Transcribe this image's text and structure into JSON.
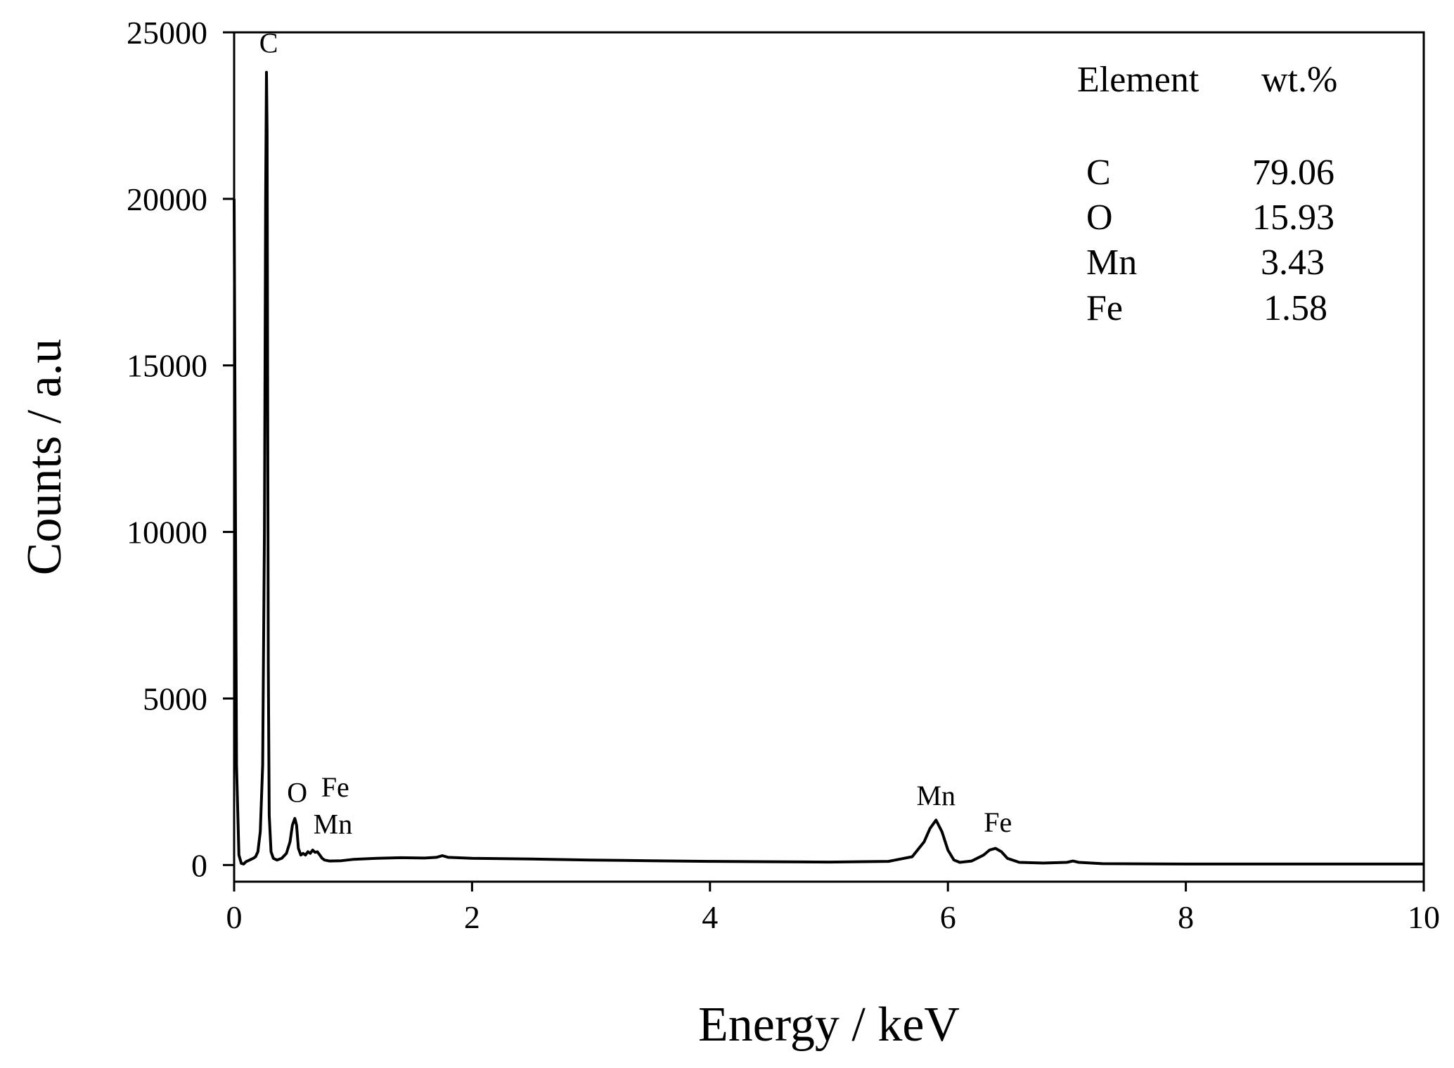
{
  "chart_data": {
    "type": "line",
    "title": "",
    "xlabel": "Energy / keV",
    "ylabel": "Counts / a.u",
    "xlim": [
      0,
      10
    ],
    "ylim": [
      -500,
      25000
    ],
    "x_ticks": [
      "0",
      "2",
      "4",
      "6",
      "8",
      "10"
    ],
    "y_ticks": [
      "0",
      "5000",
      "10000",
      "15000",
      "20000",
      "25000"
    ],
    "x_tick_values": [
      0,
      2,
      4,
      6,
      8,
      10
    ],
    "y_tick_values": [
      0,
      5000,
      10000,
      15000,
      20000,
      25000
    ],
    "grid": false,
    "line_color": "#000000",
    "series": [
      {
        "x": [
          0.0,
          0.02,
          0.04,
          0.06,
          0.08,
          0.1,
          0.13,
          0.16,
          0.18,
          0.2,
          0.22,
          0.24,
          0.255,
          0.265,
          0.272,
          0.277,
          0.282,
          0.287,
          0.295,
          0.31,
          0.33,
          0.36,
          0.4,
          0.44,
          0.47,
          0.49,
          0.51,
          0.525,
          0.54,
          0.56,
          0.58,
          0.6,
          0.62,
          0.64,
          0.66,
          0.68,
          0.7,
          0.72,
          0.74,
          0.76,
          0.8,
          0.9,
          1.0,
          1.2,
          1.4,
          1.6,
          1.7,
          1.75,
          1.8,
          2.0,
          2.5,
          3.0,
          3.5,
          4.0,
          4.5,
          5.0,
          5.5,
          5.7,
          5.8,
          5.85,
          5.9,
          5.95,
          6.0,
          6.05,
          6.1,
          6.2,
          6.3,
          6.35,
          6.4,
          6.45,
          6.5,
          6.6,
          6.8,
          7.0,
          7.05,
          7.1,
          7.3,
          8.0,
          9.0,
          10.0
        ],
        "y": [
          20000,
          3000,
          300,
          50,
          30,
          100,
          150,
          200,
          250,
          400,
          1000,
          3000,
          10000,
          20000,
          23800,
          22000,
          14000,
          6000,
          1500,
          400,
          200,
          150,
          200,
          350,
          700,
          1200,
          1400,
          1200,
          500,
          300,
          350,
          300,
          400,
          350,
          450,
          380,
          400,
          300,
          200,
          150,
          120,
          130,
          170,
          200,
          220,
          210,
          230,
          280,
          230,
          200,
          180,
          150,
          130,
          110,
          100,
          90,
          110,
          250,
          700,
          1100,
          1350,
          1000,
          450,
          150,
          80,
          120,
          300,
          450,
          500,
          400,
          200,
          80,
          60,
          80,
          120,
          80,
          40,
          30,
          30,
          30
        ]
      }
    ],
    "annotations": [
      {
        "text": "C",
        "x": 0.29,
        "y": 24400
      },
      {
        "text": "O",
        "x": 0.53,
        "y": 1900
      },
      {
        "text": "Fe",
        "x": 0.85,
        "y": 2050
      },
      {
        "text": "Mn",
        "x": 0.83,
        "y": 950
      },
      {
        "text": "Mn",
        "x": 5.9,
        "y": 1800
      },
      {
        "text": "Fe",
        "x": 6.42,
        "y": 1000
      }
    ],
    "inset_table": {
      "headers": [
        "Element",
        "wt.%"
      ],
      "rows": [
        {
          "element": "C",
          "value": "79.06"
        },
        {
          "element": "O",
          "value": "15.93"
        },
        {
          "element": "Mn",
          "value": "3.43"
        },
        {
          "element": "Fe",
          "value": "1.58"
        }
      ]
    }
  }
}
